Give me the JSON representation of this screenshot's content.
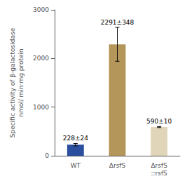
{
  "chart_data": {
    "type": "bar",
    "ylabel": "Specific activity of β-galactosidase\nnmol/ min·mg protein",
    "categories": [
      "WT",
      "ΔrsfS",
      "ΔrsfS\n::rsfS"
    ],
    "values": [
      228,
      2291,
      590
    ],
    "errors": [
      24,
      348,
      10
    ],
    "colors": [
      "#2b4f9e",
      "#b5965a",
      "#e0d5b8"
    ],
    "annotations": [
      "228±24",
      "2291±348",
      "590±10"
    ],
    "ylim": [
      0,
      3000
    ],
    "yticks": [
      0,
      1000,
      2000,
      3000
    ],
    "grid": false
  }
}
